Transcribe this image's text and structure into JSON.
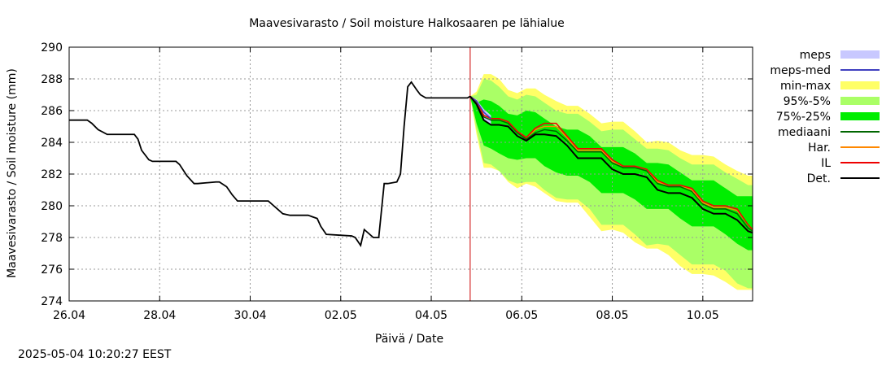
{
  "chart_data": {
    "type": "line",
    "title": "Maavesivarasto / Soil moisture   Halkosaaren pe lähialue",
    "xlabel": "Päivä / Date",
    "ylabel": "Maavesivarasto / Soil moisture (mm)",
    "ylim": [
      274,
      290
    ],
    "yticks": [
      274,
      276,
      278,
      280,
      282,
      284,
      286,
      288,
      290
    ],
    "xlim": [
      0,
      7.55
    ],
    "xticks": [
      {
        "label": "26.04",
        "x": 0
      },
      {
        "label": "28.04",
        "x": 1
      },
      {
        "label": "30.04",
        "x": 2
      },
      {
        "label": "02.05",
        "x": 3
      },
      {
        "label": "04.05",
        "x": 4
      },
      {
        "label": "06.05",
        "x": 5
      },
      {
        "label": "08.05",
        "x": 6
      },
      {
        "label": "10.05",
        "x": 7
      }
    ],
    "grid": true,
    "now_x": 4.43,
    "now_color": "#cc0000",
    "legend_position": "right",
    "legend": [
      {
        "label": "meps",
        "color": "#c8c8ff",
        "kind": "band"
      },
      {
        "label": "meps-med",
        "color": "#4040c0",
        "kind": "line"
      },
      {
        "label": "min-max",
        "color": "#ffff66",
        "kind": "band"
      },
      {
        "label": "95%-5%",
        "color": "#aaff66",
        "kind": "band"
      },
      {
        "label": "75%-25%",
        "color": "#00ee00",
        "kind": "band"
      },
      {
        "label": "mediaani",
        "color": "#006600",
        "kind": "line"
      },
      {
        "label": "Har.",
        "color": "#ff8800",
        "kind": "line"
      },
      {
        "label": "IL",
        "color": "#ee0000",
        "kind": "line"
      },
      {
        "label": "Det.",
        "color": "#000000",
        "kind": "line"
      }
    ],
    "det_observed": {
      "x": [
        0,
        0.2,
        0.25,
        0.32,
        0.42,
        0.72,
        0.76,
        0.8,
        0.88,
        0.92,
        1.18,
        1.22,
        1.3,
        1.38,
        1.42,
        1.62,
        1.66,
        1.74,
        1.8,
        1.86,
        2.2,
        2.26,
        2.36,
        2.44,
        2.64,
        2.74,
        2.78,
        2.84,
        3.12,
        3.16,
        3.22,
        3.26,
        3.36,
        3.42,
        3.48,
        3.52,
        3.62,
        3.66,
        3.7,
        3.74,
        3.78,
        3.84,
        3.88,
        3.94,
        4.0,
        4.06,
        4.4,
        4.43
      ],
      "y": [
        285.4,
        285.4,
        285.2,
        284.8,
        284.5,
        284.5,
        284.2,
        283.5,
        282.9,
        282.8,
        282.8,
        282.6,
        281.9,
        281.4,
        281.4,
        281.5,
        281.5,
        281.2,
        280.7,
        280.3,
        280.3,
        280.0,
        279.5,
        279.4,
        279.4,
        279.2,
        278.7,
        278.2,
        278.1,
        278.0,
        277.5,
        278.5,
        278.0,
        278.0,
        281.4,
        281.4,
        281.5,
        282.0,
        285.0,
        287.5,
        287.8,
        287.3,
        287.0,
        286.8,
        286.8,
        286.8,
        286.8,
        286.9
      ]
    },
    "forecast_x": [
      4.43,
      4.5,
      4.58,
      4.66,
      4.75,
      4.85,
      4.95,
      5.05,
      5.15,
      5.25,
      5.38,
      5.5,
      5.62,
      5.75,
      5.88,
      6.0,
      6.12,
      6.25,
      6.38,
      6.5,
      6.62,
      6.75,
      6.88,
      7.0,
      7.12,
      7.25,
      7.38,
      7.5,
      7.55
    ],
    "bands": {
      "min_max": {
        "low": [
          286.9,
          284.5,
          282.4,
          282.4,
          282.2,
          281.5,
          281.1,
          281.4,
          281.2,
          280.8,
          280.3,
          280.2,
          280.2,
          279.3,
          278.4,
          278.5,
          278.3,
          277.7,
          277.3,
          277.3,
          276.9,
          276.2,
          275.7,
          275.7,
          275.6,
          275.2,
          274.7,
          274.7,
          274.7
        ],
        "high": [
          286.9,
          287.2,
          288.3,
          288.3,
          288.0,
          287.3,
          287.1,
          287.4,
          287.4,
          287.0,
          286.6,
          286.3,
          286.3,
          285.8,
          285.2,
          285.3,
          285.3,
          284.7,
          284.0,
          284.1,
          284.0,
          283.5,
          283.2,
          283.2,
          283.1,
          282.6,
          282.2,
          281.9,
          281.9
        ]
      },
      "p95_5": {
        "low": [
          286.9,
          284.8,
          282.7,
          282.6,
          282.2,
          281.6,
          281.4,
          281.5,
          281.5,
          281.0,
          280.5,
          280.4,
          280.4,
          279.8,
          278.8,
          278.8,
          278.8,
          278.2,
          277.5,
          277.6,
          277.5,
          276.9,
          276.3,
          276.3,
          276.3,
          275.9,
          275.1,
          274.8,
          274.8
        ],
        "high": [
          286.9,
          287.0,
          288.0,
          287.9,
          287.5,
          286.9,
          286.7,
          287.0,
          286.9,
          286.5,
          286.0,
          285.8,
          285.8,
          285.3,
          284.7,
          284.8,
          284.8,
          284.2,
          283.6,
          283.6,
          283.5,
          283.0,
          282.6,
          282.6,
          282.6,
          282.1,
          281.7,
          281.3,
          281.3
        ]
      },
      "p75_25": {
        "low": [
          286.9,
          285.2,
          283.8,
          283.6,
          283.3,
          283.0,
          282.9,
          283.0,
          283.0,
          282.5,
          282.1,
          281.9,
          281.9,
          281.5,
          280.8,
          280.8,
          280.8,
          280.4,
          279.8,
          279.8,
          279.8,
          279.2,
          278.7,
          278.7,
          278.7,
          278.2,
          277.6,
          277.2,
          277.2
        ],
        "high": [
          286.9,
          286.5,
          286.7,
          286.6,
          286.3,
          285.8,
          285.7,
          286.0,
          285.9,
          285.5,
          285.0,
          284.8,
          284.8,
          284.4,
          283.7,
          283.7,
          283.7,
          283.3,
          282.7,
          282.7,
          282.6,
          282.1,
          281.6,
          281.6,
          281.6,
          281.1,
          280.6,
          280.6,
          280.6
        ]
      },
      "meps": {
        "low": [
          286.9,
          286.3,
          285.4,
          285.1
        ],
        "high": [
          286.9,
          286.7,
          286.1,
          285.7
        ]
      }
    },
    "series": [
      {
        "name": "mediaani",
        "color": "#006600",
        "y": [
          286.9,
          286.5,
          285.6,
          285.4,
          285.4,
          285.2,
          284.6,
          284.2,
          284.6,
          284.8,
          284.7,
          284.1,
          283.4,
          283.4,
          283.4,
          282.7,
          282.4,
          282.4,
          282.2,
          281.4,
          281.2,
          281.2,
          280.9,
          280.1,
          279.8,
          279.8,
          279.5,
          278.6,
          278.4
        ]
      },
      {
        "name": "Har.",
        "color": "#ff8800",
        "y": [
          286.9,
          286.6,
          285.7,
          285.5,
          285.5,
          285.3,
          284.7,
          284.3,
          284.8,
          285.0,
          285.0,
          284.3,
          283.5,
          283.5,
          283.5,
          282.8,
          282.5,
          282.5,
          282.3,
          281.5,
          281.3,
          281.3,
          281.0,
          280.2,
          279.9,
          279.9,
          279.7,
          278.8,
          278.5
        ]
      },
      {
        "name": "IL",
        "color": "#ee0000",
        "y": [
          286.9,
          286.6,
          285.7,
          285.5,
          285.5,
          285.3,
          284.7,
          284.3,
          284.9,
          285.2,
          285.2,
          284.4,
          283.6,
          283.6,
          283.6,
          282.9,
          282.5,
          282.5,
          282.3,
          281.6,
          281.3,
          281.3,
          281.1,
          280.3,
          280.0,
          280.0,
          279.8,
          278.8,
          278.5
        ]
      },
      {
        "name": "meps-med",
        "color": "#4040c0",
        "y": [
          286.9,
          286.6,
          285.9,
          285.5
        ]
      },
      {
        "name": "Det.",
        "color": "#000000",
        "y": [
          286.9,
          286.4,
          285.4,
          285.1,
          285.1,
          285.0,
          284.4,
          284.1,
          284.5,
          284.5,
          284.4,
          283.8,
          283.0,
          283.0,
          283.0,
          282.3,
          282.0,
          282.0,
          281.8,
          281.0,
          280.8,
          280.8,
          280.5,
          279.8,
          279.5,
          279.5,
          279.1,
          278.4,
          278.3
        ]
      }
    ]
  },
  "footer": {
    "timestamp": "2025-05-04 10:20:27 EEST"
  }
}
